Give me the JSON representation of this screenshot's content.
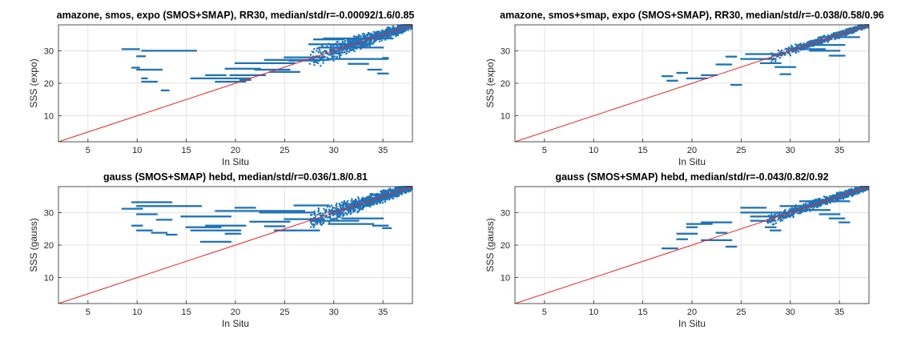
{
  "chart_data": [
    {
      "type": "scatter",
      "title": "amazone, smos, expo (SMOS+SMAP), RR30, median/std/r=-0.00092/1.6/0.85",
      "xlabel": "In Situ",
      "ylabel": "SSS (expo)",
      "xlim": [
        2,
        38
      ],
      "ylim": [
        2,
        38
      ],
      "xticks": [
        5,
        10,
        15,
        20,
        25,
        30,
        35
      ],
      "yticks": [
        10,
        20,
        30
      ],
      "grid": true,
      "reference_line": {
        "x": [
          2,
          38
        ],
        "y": [
          2,
          38
        ],
        "color": "#e8282b"
      },
      "segments": [
        [
          8.5,
          10.2,
          30.5
        ],
        [
          10.0,
          10.8,
          28.3
        ],
        [
          9.5,
          10.2,
          24.8
        ],
        [
          10.0,
          12.5,
          24.2
        ],
        [
          10.5,
          11.0,
          21.5
        ],
        [
          10.5,
          12.0,
          20.5
        ],
        [
          12.5,
          13.2,
          17.8
        ],
        [
          10.5,
          16.0,
          30.0
        ],
        [
          15.5,
          21.5,
          21.5
        ],
        [
          17.0,
          19.0,
          22.5
        ],
        [
          18.0,
          21.0,
          20.5
        ],
        [
          19.0,
          22.5,
          24.5
        ],
        [
          19.5,
          23.0,
          22.5
        ],
        [
          20.0,
          26.0,
          26.2
        ],
        [
          20.5,
          21.5,
          21.0
        ],
        [
          22.0,
          25.5,
          24.2
        ],
        [
          23.0,
          29.5,
          27.2
        ],
        [
          23.5,
          26.5,
          23.5
        ],
        [
          25.0,
          29.0,
          28.0
        ],
        [
          25.5,
          28.5,
          27.0
        ],
        [
          27.5,
          33.5,
          32.0
        ],
        [
          28.0,
          31.0,
          33.5
        ],
        [
          28.5,
          35.0,
          31.0
        ],
        [
          29.0,
          36.0,
          33.8
        ],
        [
          29.5,
          35.5,
          27.5
        ],
        [
          31.5,
          33.5,
          26.0
        ],
        [
          33.5,
          34.8,
          24.2
        ],
        [
          34.5,
          35.5,
          23.0
        ],
        [
          35.0,
          35.5,
          27.8
        ]
      ],
      "cluster": {
        "x": [
          27.5,
          38
        ],
        "spread": 2.2,
        "n": 900
      }
    },
    {
      "type": "scatter",
      "title": "amazone, smos+smap, expo (SMOS+SMAP), RR30, median/std/r=-0.038/0.58/0.96",
      "xlabel": "In Situ",
      "ylabel": "SSS (expo)",
      "xlim": [
        2,
        38
      ],
      "ylim": [
        2,
        38
      ],
      "xticks": [
        5,
        10,
        15,
        20,
        25,
        30,
        35
      ],
      "yticks": [
        10,
        20,
        30
      ],
      "grid": true,
      "reference_line": {
        "x": [
          2,
          38
        ],
        "y": [
          2,
          38
        ],
        "color": "#e8282b"
      },
      "segments": [
        [
          17.0,
          18.0,
          22.2
        ],
        [
          17.5,
          18.5,
          20.8
        ],
        [
          18.5,
          19.5,
          23.2
        ],
        [
          19.5,
          21.5,
          21.5
        ],
        [
          21.0,
          22.5,
          22.5
        ],
        [
          22.5,
          24.0,
          25.8
        ],
        [
          23.5,
          24.5,
          28.2
        ],
        [
          24.0,
          25.0,
          19.5
        ],
        [
          25.0,
          28.5,
          27.5
        ],
        [
          25.5,
          29.5,
          29.0
        ],
        [
          27.0,
          29.0,
          26.2
        ],
        [
          28.5,
          30.5,
          25.0
        ],
        [
          29.0,
          30.0,
          22.8
        ],
        [
          29.5,
          33.5,
          30.5
        ],
        [
          31.0,
          35.5,
          31.8
        ],
        [
          32.0,
          35.0,
          30.0
        ],
        [
          33.0,
          37.0,
          34.2
        ],
        [
          34.0,
          35.5,
          28.5
        ]
      ],
      "cluster": {
        "x": [
          28,
          38
        ],
        "spread": 1.0,
        "n": 700
      }
    },
    {
      "type": "scatter",
      "title": "gauss (SMOS+SMAP) hebd, median/std/r=0.036/1.8/0.81",
      "xlabel": "In Situ",
      "ylabel": "SSS (gauss)",
      "xlim": [
        2,
        38
      ],
      "ylim": [
        2,
        38
      ],
      "xticks": [
        5,
        10,
        15,
        20,
        25,
        30,
        35
      ],
      "yticks": [
        10,
        20,
        30
      ],
      "grid": true,
      "reference_line": {
        "x": [
          2,
          38
        ],
        "y": [
          2,
          38
        ],
        "color": "#e8282b"
      },
      "segments": [
        [
          8.5,
          10.5,
          31.2
        ],
        [
          9.5,
          13.5,
          33.2
        ],
        [
          10.0,
          16.5,
          32.0
        ],
        [
          10.0,
          12.0,
          29.5
        ],
        [
          9.5,
          10.5,
          26.0
        ],
        [
          10.0,
          11.5,
          24.5
        ],
        [
          11.5,
          13.0,
          23.8
        ],
        [
          12.0,
          13.5,
          27.8
        ],
        [
          13.0,
          14.0,
          23.2
        ],
        [
          14.5,
          19.5,
          28.8
        ],
        [
          15.0,
          18.5,
          25.5
        ],
        [
          15.5,
          20.5,
          24.5
        ],
        [
          16.5,
          19.5,
          21.0
        ],
        [
          17.0,
          21.0,
          26.0
        ],
        [
          18.0,
          27.0,
          30.5
        ],
        [
          19.0,
          20.5,
          23.5
        ],
        [
          20.0,
          22.0,
          31.5
        ],
        [
          21.5,
          25.5,
          27.2
        ],
        [
          22.5,
          28.0,
          30.0
        ],
        [
          23.0,
          25.0,
          25.8
        ],
        [
          24.0,
          28.5,
          24.5
        ],
        [
          25.0,
          29.0,
          28.0
        ],
        [
          26.0,
          29.5,
          32.2
        ],
        [
          28.0,
          32.5,
          27.5
        ],
        [
          29.5,
          34.0,
          26.5
        ],
        [
          31.0,
          35.0,
          28.2
        ],
        [
          34.0,
          35.5,
          26.0
        ],
        [
          35.0,
          35.8,
          25.2
        ]
      ],
      "cluster": {
        "x": [
          27.5,
          38
        ],
        "spread": 2.0,
        "n": 1100
      }
    },
    {
      "type": "scatter",
      "title": "gauss (SMOS+SMAP) hebd, median/std/r=-0.043/0.82/0.92",
      "xlabel": "In Situ",
      "ylabel": "SSS (gauss)",
      "xlim": [
        2,
        38
      ],
      "ylim": [
        2,
        38
      ],
      "xticks": [
        5,
        10,
        15,
        20,
        25,
        30,
        35
      ],
      "yticks": [
        10,
        20,
        30
      ],
      "grid": true,
      "reference_line": {
        "x": [
          2,
          38
        ],
        "y": [
          2,
          38
        ],
        "color": "#e8282b"
      },
      "segments": [
        [
          17.0,
          18.5,
          19.0
        ],
        [
          18.5,
          19.5,
          21.8
        ],
        [
          18.5,
          20.5,
          23.5
        ],
        [
          19.5,
          20.5,
          25.5
        ],
        [
          19.5,
          22.0,
          26.5
        ],
        [
          21.0,
          24.0,
          27.0
        ],
        [
          21.0,
          22.5,
          21.5
        ],
        [
          22.5,
          24.0,
          21.5
        ],
        [
          22.5,
          23.5,
          23.8
        ],
        [
          23.5,
          24.5,
          19.5
        ],
        [
          25.0,
          29.5,
          30.0
        ],
        [
          25.0,
          27.5,
          31.5
        ],
        [
          26.0,
          30.0,
          28.8
        ],
        [
          26.0,
          28.5,
          27.5
        ],
        [
          27.5,
          28.5,
          25.5
        ],
        [
          28.0,
          29.0,
          24.5
        ],
        [
          29.0,
          33.0,
          32.0
        ],
        [
          30.0,
          34.0,
          30.8
        ],
        [
          31.0,
          36.0,
          33.5
        ],
        [
          33.0,
          35.0,
          29.5
        ],
        [
          34.0,
          35.5,
          28.2
        ],
        [
          35.0,
          36.0,
          27.0
        ]
      ],
      "cluster": {
        "x": [
          27.5,
          38
        ],
        "spread": 1.3,
        "n": 900
      }
    }
  ],
  "colors": {
    "points": "#1f73b8",
    "reference_line": "#e8282b",
    "grid": "#e3e3e3",
    "axis": "#262626"
  }
}
